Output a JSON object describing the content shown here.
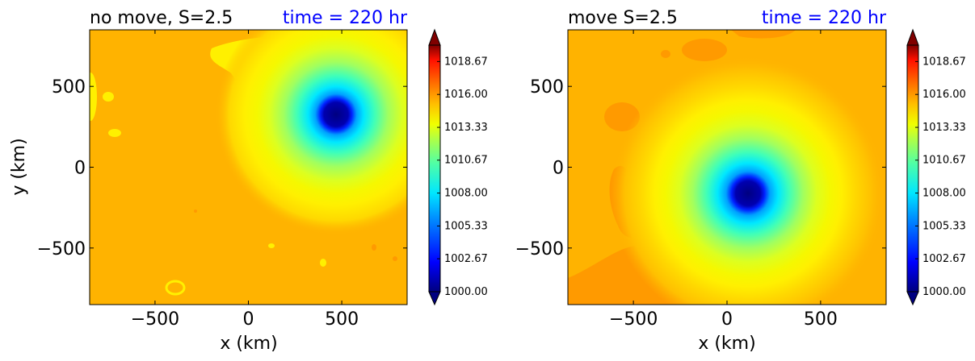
{
  "chart_data": [
    {
      "type": "heatmap",
      "title_left": "no move, S=2.5",
      "title_right": "time = 220 hr",
      "xlabel": "x (km)",
      "ylabel": "y (km)",
      "xlim": [
        -850,
        850
      ],
      "ylim": [
        -850,
        850
      ],
      "xticks": [
        -500,
        0,
        500
      ],
      "yticks": [
        -500,
        0,
        500
      ],
      "xtick_labels": [
        "−500",
        "0",
        "500"
      ],
      "ytick_labels": [
        "−500",
        "0",
        "500"
      ],
      "background_value": 1014.0,
      "vortex_center": {
        "x": 460,
        "y": 320
      },
      "colorbar": {
        "min": 1000.0,
        "max": 1020.0,
        "extend": "both",
        "tick_values": [
          1000.0,
          1002.67,
          1005.33,
          1008.0,
          1010.67,
          1013.33,
          1016.0,
          1018.67
        ],
        "tick_labels": [
          "1000.00",
          "1002.67",
          "1005.33",
          "1008.00",
          "1010.67",
          "1013.33",
          "1016.00",
          "1018.67"
        ]
      }
    },
    {
      "type": "heatmap",
      "title_left": "move S=2.5",
      "title_right": "time = 220 hr",
      "xlabel": "x (km)",
      "ylabel": "",
      "xlim": [
        -850,
        850
      ],
      "ylim": [
        -850,
        850
      ],
      "xticks": [
        -500,
        0,
        500
      ],
      "yticks": [
        -500,
        0,
        500
      ],
      "xtick_labels": [
        "−500",
        "0",
        "500"
      ],
      "ytick_labels": [
        "−500",
        "0",
        "500"
      ],
      "background_value": 1014.0,
      "vortex_center": {
        "x": 110,
        "y": -160
      },
      "colorbar": {
        "min": 1000.0,
        "max": 1020.0,
        "extend": "both",
        "tick_values": [
          1000.0,
          1002.67,
          1005.33,
          1008.0,
          1010.67,
          1013.33,
          1016.0,
          1018.67
        ],
        "tick_labels": [
          "1000.00",
          "1002.67",
          "1005.33",
          "1008.00",
          "1010.67",
          "1013.33",
          "1016.00",
          "1018.67"
        ]
      }
    }
  ],
  "colors": {
    "background_field": "#ffb300",
    "orange_patch": "#ff9a00",
    "title_time": "#0000ff",
    "title_text": "#000000"
  }
}
